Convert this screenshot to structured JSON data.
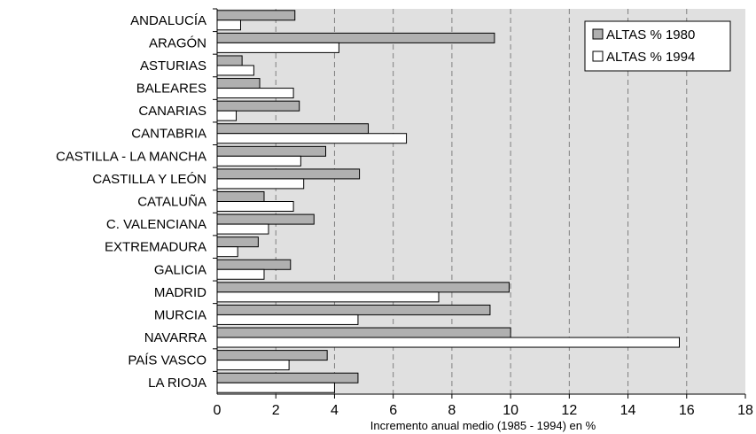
{
  "chart_data": {
    "type": "bar",
    "orientation": "horizontal",
    "categories": [
      "ANDALUCÍA",
      "ARAGÓN",
      "ASTURIAS",
      "BALEARES",
      "CANARIAS",
      "CANTABRIA",
      "CASTILLA - LA MANCHA",
      "CASTILLA Y LEÓN",
      "CATALUÑA",
      "C. VALENCIANA",
      "EXTREMADURA",
      "GALICIA",
      "MADRID",
      "MURCIA",
      "NAVARRA",
      "PAÍS VASCO",
      "LA RIOJA"
    ],
    "series": [
      {
        "name": "ALTAS % 1980",
        "color": "#b0b0b0",
        "values": [
          2.65,
          9.45,
          0.85,
          1.45,
          2.8,
          5.15,
          3.7,
          4.85,
          1.6,
          3.3,
          1.4,
          2.5,
          9.95,
          9.3,
          10.0,
          3.75,
          4.8
        ]
      },
      {
        "name": "ALTAS % 1994",
        "color": "#ffffff",
        "values": [
          0.8,
          4.15,
          1.25,
          2.6,
          0.65,
          6.45,
          2.85,
          2.95,
          2.6,
          1.75,
          0.7,
          1.6,
          7.55,
          4.8,
          15.75,
          2.45,
          4.0
        ]
      }
    ],
    "xlabel": "Incremento anual medio (1985 - 1994) en %",
    "ylabel": "",
    "xlim": [
      0,
      18
    ],
    "xticks": [
      "0",
      "2",
      "4",
      "6",
      "8",
      "10",
      "12",
      "14",
      "16",
      "18"
    ],
    "grid": "vertical dashed",
    "legend_position": "top-right",
    "plot_background": "#e0e0e0"
  }
}
